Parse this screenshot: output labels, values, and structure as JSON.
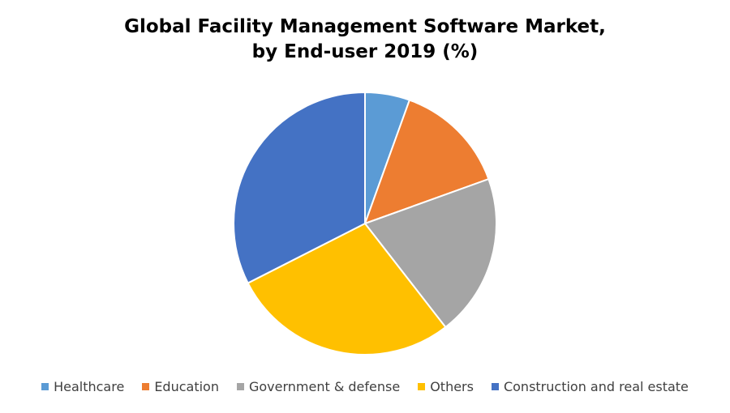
{
  "chart_data": {
    "type": "pie",
    "title_lines": [
      "Global Facility Management Software Market,",
      "by End-user 2019 (%)"
    ],
    "categories": [
      "Healthcare",
      "Education",
      "Government & defense",
      "Others",
      "Construction and real estate"
    ],
    "values": [
      5.5,
      14,
      20,
      28,
      32.5
    ],
    "colors": [
      "#5B9BD5",
      "#ED7D31",
      "#A5A5A5",
      "#FFC000",
      "#4472C4"
    ],
    "legend_position": "bottom",
    "start_angle_deg": 0,
    "direction": "clockwise"
  }
}
